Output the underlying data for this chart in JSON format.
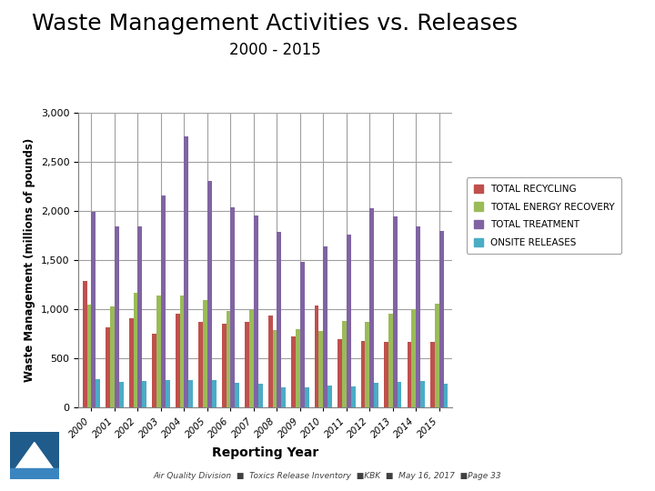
{
  "title": "Waste Management Activities vs. Releases",
  "subtitle": "2000 - 2015",
  "xlabel": "Reporting Year",
  "ylabel": "Waste Management (millions of pounds)",
  "years": [
    "2000",
    "2001",
    "2002",
    "2003",
    "2004",
    "2005",
    "2006",
    "2007",
    "2008",
    "2009",
    "2010",
    "2011",
    "2012",
    "2013",
    "2014",
    "2015"
  ],
  "total_recycling": [
    1290,
    820,
    910,
    750,
    955,
    870,
    855,
    870,
    940,
    720,
    1040,
    700,
    675,
    665,
    670,
    670
  ],
  "total_energy_recovery": [
    1050,
    1030,
    1170,
    1140,
    1140,
    1090,
    980,
    990,
    790,
    800,
    780,
    880,
    870,
    960,
    1000,
    1060
  ],
  "total_treatment": [
    1990,
    1840,
    1840,
    2160,
    2760,
    2310,
    2040,
    1960,
    1790,
    1480,
    1640,
    1760,
    2030,
    1950,
    1840,
    1800
  ],
  "onsite_releases": [
    290,
    265,
    270,
    280,
    280,
    280,
    250,
    240,
    210,
    210,
    220,
    215,
    250,
    260,
    270,
    240
  ],
  "colors": {
    "total_recycling": "#C0504D",
    "total_energy_recovery": "#9BBB59",
    "total_treatment": "#8064A2",
    "onsite_releases": "#4BACC6"
  },
  "ylim": [
    0,
    3000
  ],
  "yticks": [
    0,
    500,
    1000,
    1500,
    2000,
    2500,
    3000
  ],
  "legend_labels": [
    "TOTAL RECYCLING",
    "TOTAL ENERGY RECOVERY",
    "TOTAL TREATMENT",
    "ONSITE RELEASES"
  ],
  "footer": "Air Quality Division  ■  Toxics Release Inventory  ■KBK  ■  May 16, 2017  ■Page 33",
  "bg_color": "#FFFFFF",
  "grid_color": "#A0A0A0",
  "title_fontsize": 18,
  "subtitle_fontsize": 12
}
